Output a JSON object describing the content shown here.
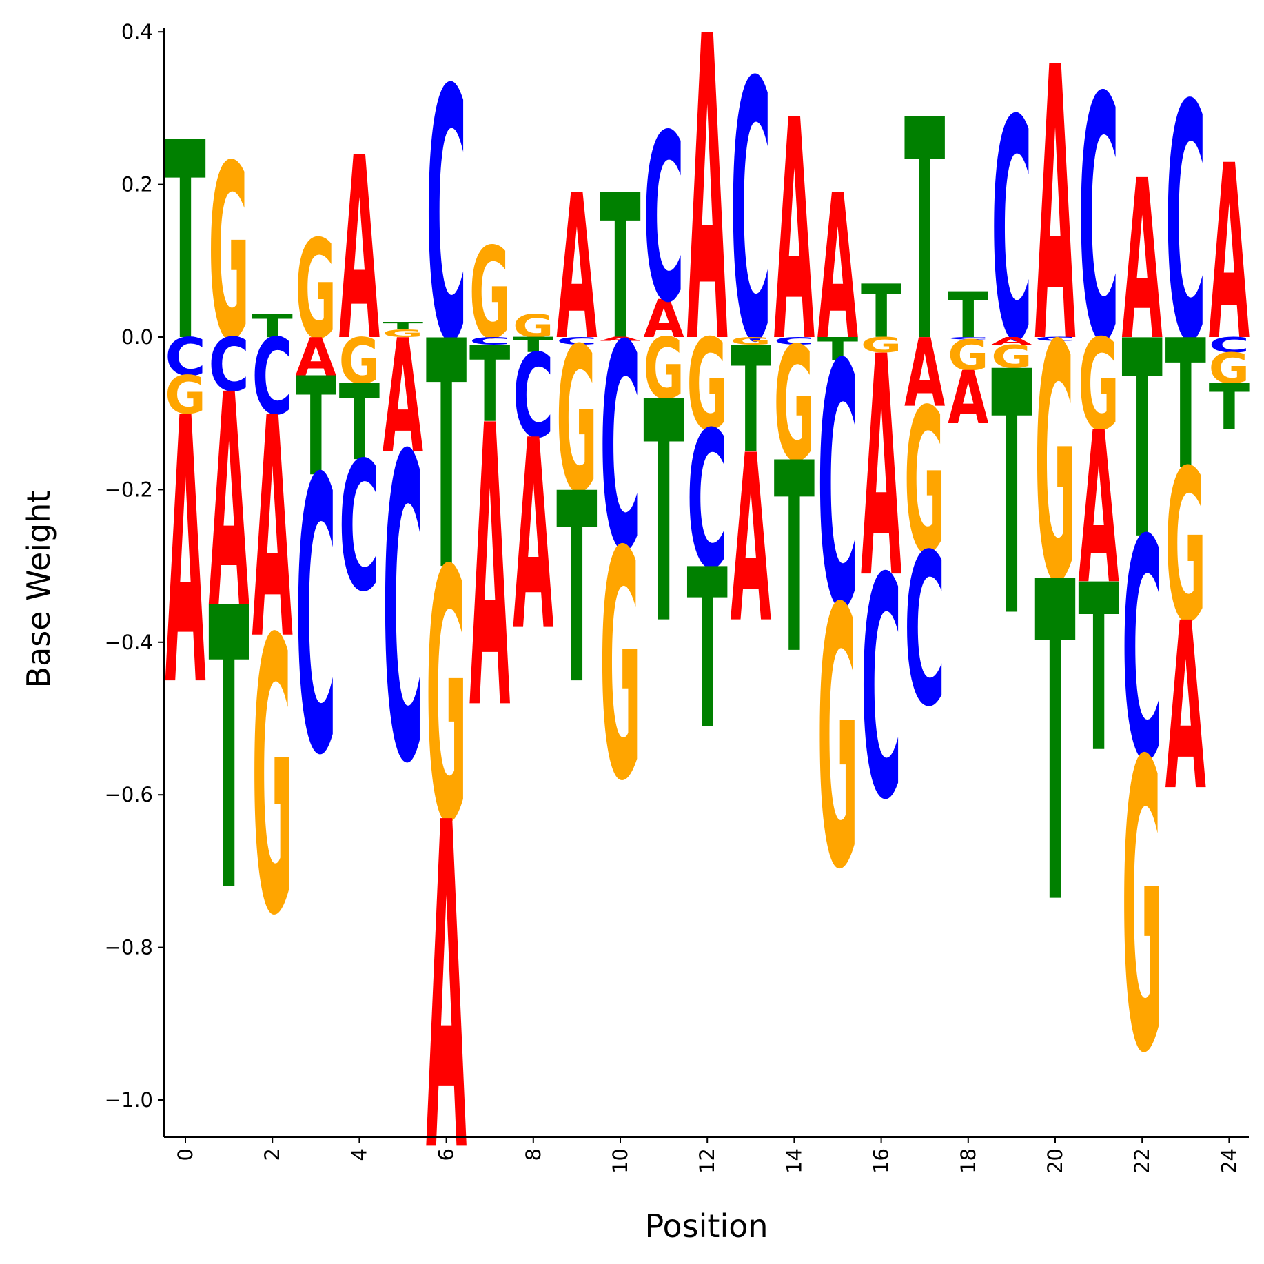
{
  "chart_data": {
    "type": "sequence-logo",
    "xlabel": "Position",
    "ylabel": "Base Weight",
    "xlim": [
      -0.5,
      24.5
    ],
    "ylim": [
      -1.05,
      0.405
    ],
    "x_ticks": [
      0,
      2,
      4,
      6,
      8,
      10,
      12,
      14,
      16,
      18,
      20,
      22,
      24
    ],
    "y_ticks": [
      0.4,
      0.2,
      0.0,
      -0.2,
      -0.4,
      -0.6,
      -0.8,
      -1.0
    ],
    "y_tick_labels": [
      "0.4",
      "0.2",
      "0.0",
      "−0.2",
      "−0.4",
      "−0.6",
      "−0.8",
      "−1.0"
    ],
    "grid": false,
    "colors": {
      "A": "#ff0000",
      "C": "#0000ff",
      "G": "#ffa500",
      "T": "#008000"
    },
    "positions": [
      {
        "pos": 0,
        "weights": {
          "A": -0.35,
          "C": -0.05,
          "G": -0.05,
          "T": 0.26
        }
      },
      {
        "pos": 1,
        "weights": {
          "A": -0.28,
          "C": -0.07,
          "G": 0.23,
          "T": -0.37
        }
      },
      {
        "pos": 2,
        "weights": {
          "A": -0.29,
          "C": -0.1,
          "G": -0.36,
          "T": 0.03
        }
      },
      {
        "pos": 3,
        "weights": {
          "A": -0.05,
          "C": -0.36,
          "G": 0.13,
          "T": -0.13
        }
      },
      {
        "pos": 4,
        "weights": {
          "A": 0.24,
          "C": -0.17,
          "G": -0.06,
          "T": -0.1
        }
      },
      {
        "pos": 5,
        "weights": {
          "A": -0.15,
          "C": -0.4,
          "G": 0.01,
          "T": 0.01
        }
      },
      {
        "pos": 6,
        "weights": {
          "A": -0.43,
          "C": 0.33,
          "G": -0.33,
          "T": -0.3
        }
      },
      {
        "pos": 7,
        "weights": {
          "A": -0.37,
          "C": -0.01,
          "G": 0.12,
          "T": -0.1
        }
      },
      {
        "pos": 8,
        "weights": {
          "A": -0.25,
          "C": -0.11,
          "G": 0.03,
          "T": -0.02
        }
      },
      {
        "pos": 9,
        "weights": {
          "A": 0.19,
          "C": -0.01,
          "G": -0.19,
          "T": -0.25
        }
      },
      {
        "pos": 10,
        "weights": {
          "A": -0.005,
          "C": -0.27,
          "G": -0.3,
          "T": 0.19
        }
      },
      {
        "pos": 11,
        "weights": {
          "A": 0.05,
          "C": 0.22,
          "G": -0.08,
          "T": -0.29
        }
      },
      {
        "pos": 12,
        "weights": {
          "A": 0.4,
          "C": -0.18,
          "G": -0.12,
          "T": -0.21
        }
      },
      {
        "pos": 13,
        "weights": {
          "A": -0.22,
          "C": 0.34,
          "G": -0.01,
          "T": -0.14
        }
      },
      {
        "pos": 14,
        "weights": {
          "A": 0.29,
          "C": -0.01,
          "G": -0.15,
          "T": -0.25
        }
      },
      {
        "pos": 15,
        "weights": {
          "A": 0.19,
          "C": -0.32,
          "G": -0.34,
          "T": -0.03
        }
      },
      {
        "pos": 16,
        "weights": {
          "A": -0.29,
          "C": -0.29,
          "G": -0.02,
          "T": 0.07
        }
      },
      {
        "pos": 17,
        "weights": {
          "A": -0.09,
          "C": -0.2,
          "G": -0.19,
          "T": 0.29
        }
      },
      {
        "pos": 18,
        "weights": {
          "A": -0.07,
          "C": -0.003,
          "G": -0.04,
          "T": 0.06
        }
      },
      {
        "pos": 19,
        "weights": {
          "A": -0.01,
          "C": 0.29,
          "G": -0.03,
          "T": -0.32
        }
      },
      {
        "pos": 20,
        "weights": {
          "A": 0.36,
          "C": -0.005,
          "G": -0.31,
          "T": -0.42
        }
      },
      {
        "pos": 21,
        "weights": {
          "A": -0.2,
          "C": 0.32,
          "G": -0.12,
          "T": -0.22
        }
      },
      {
        "pos": 22,
        "weights": {
          "A": 0.21,
          "C": -0.29,
          "G": -0.38,
          "T": -0.26
        }
      },
      {
        "pos": 23,
        "weights": {
          "A": -0.22,
          "C": 0.31,
          "G": -0.2,
          "T": -0.17
        }
      },
      {
        "pos": 24,
        "weights": {
          "A": 0.23,
          "C": -0.02,
          "G": -0.04,
          "T": -0.06
        }
      }
    ]
  }
}
